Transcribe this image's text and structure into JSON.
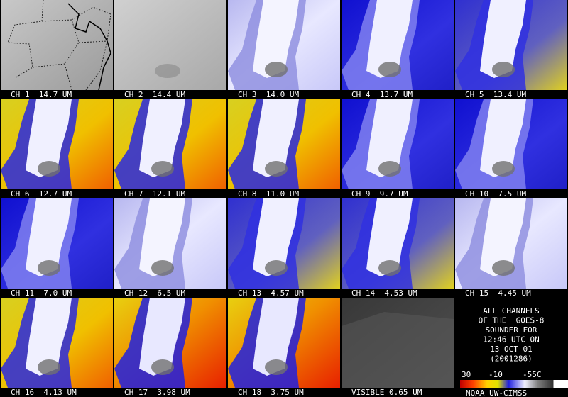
{
  "panels": [
    {
      "label": "CH 1  14.7 UM"
    },
    {
      "label": "CH 2  14.4 UM"
    },
    {
      "label": "CH 3  14.0 UM"
    },
    {
      "label": "CH 4  13.7 UM"
    },
    {
      "label": "CH 5  13.4 UM"
    },
    {
      "label": "CH 6  12.7 UM"
    },
    {
      "label": "CH 7  12.1 UM"
    },
    {
      "label": "CH 8  11.0 UM"
    },
    {
      "label": "CH 9  9.7 UM"
    },
    {
      "label": "CH 10  7.5 UM"
    },
    {
      "label": "CH 11  7.0 UM"
    },
    {
      "label": "CH 12  6.5 UM"
    },
    {
      "label": "CH 13  4.57 UM"
    },
    {
      "label": "CH 14  4.53 UM"
    },
    {
      "label": "CH 15  4.45 UM"
    },
    {
      "label": "CH 16  4.13 UM"
    },
    {
      "label": "CH 17  3.98 UM"
    },
    {
      "label": "CH 18  3.75 UM"
    },
    {
      "label": "VISIBLE 0.65 UM"
    }
  ],
  "info": {
    "lines": [
      "ALL CHANNELS",
      "OF THE  GOES-8",
      "SOUNDER FOR",
      "12:46 UTC ON",
      "13 OCT 01",
      "(2001286)"
    ]
  },
  "colorbar": {
    "labels": [
      "30",
      "-10",
      "-55C"
    ]
  },
  "footer": "NOAA UW-CIMSS"
}
